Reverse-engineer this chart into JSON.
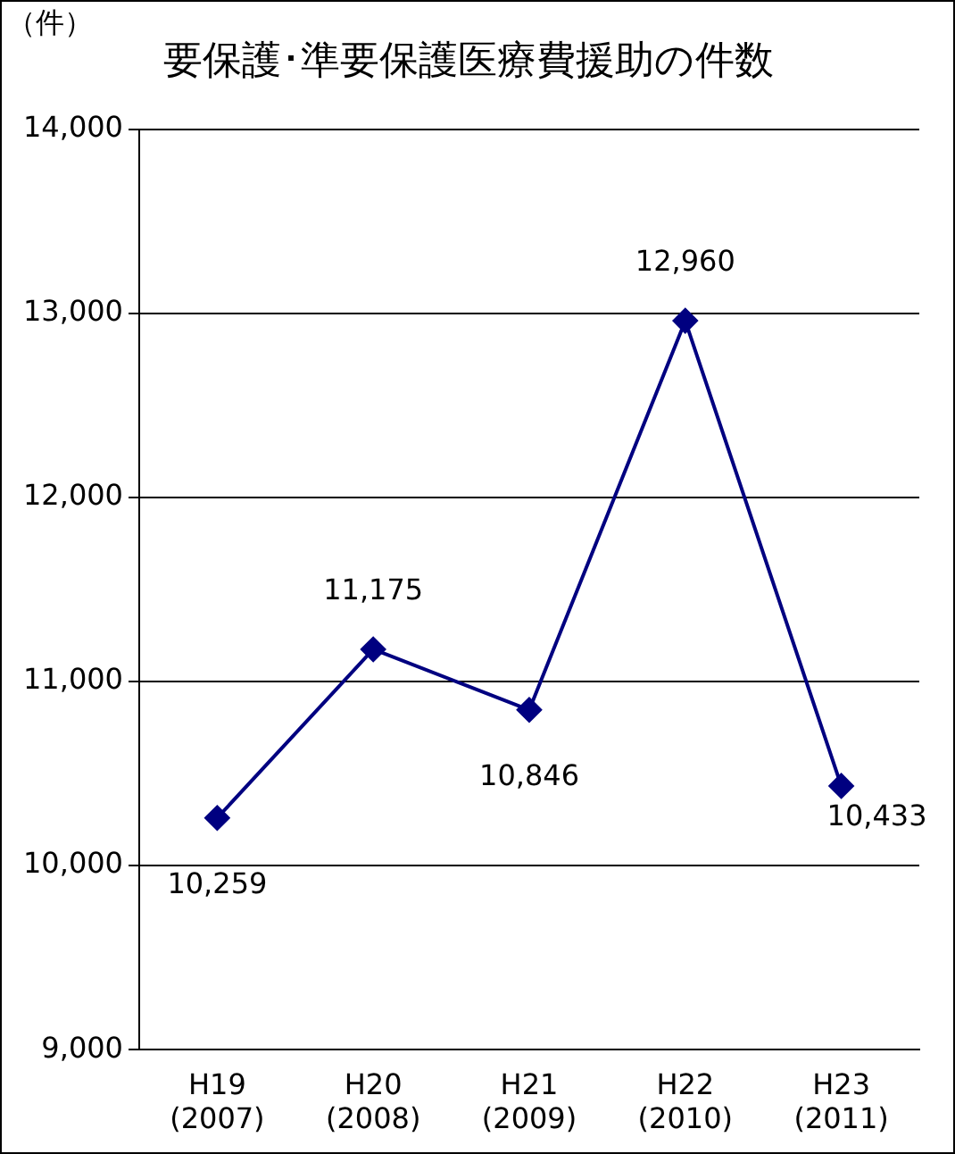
{
  "chart_data": {
    "type": "line",
    "title": "要保護･準要保護医療費援助の件数",
    "ylabel": "（件）",
    "categories": [
      "H19\n(2007)",
      "H20\n(2008)",
      "H21\n(2009)",
      "H22\n(2010)",
      "H23\n(2011)"
    ],
    "values": [
      10259,
      11175,
      10846,
      12960,
      10433
    ],
    "color": "#000080",
    "ylim": [
      9000,
      14000
    ],
    "yticks": [
      {
        "value": 9000,
        "label": "9,000"
      },
      {
        "value": 10000,
        "label": "10,000"
      },
      {
        "value": 11000,
        "label": "11,000"
      },
      {
        "value": 12000,
        "label": "12,000"
      },
      {
        "value": 13000,
        "label": "13,000"
      },
      {
        "value": 14000,
        "label": "14,000"
      }
    ],
    "value_labels": [
      "10,259",
      "11,175",
      "10,846",
      "12,960",
      "10,433"
    ],
    "grid": "y",
    "legend": false,
    "marker": "diamond",
    "line_style": "solid"
  }
}
